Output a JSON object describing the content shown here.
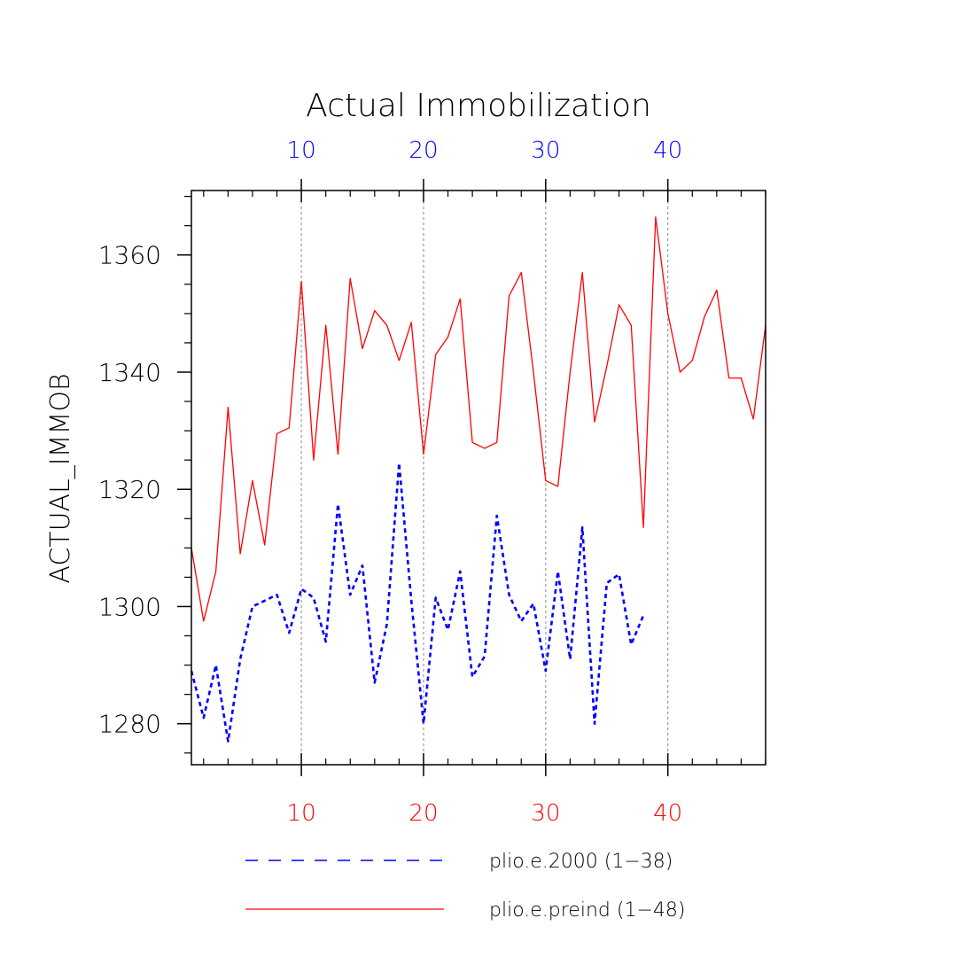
{
  "chart_data": {
    "type": "line",
    "title": "Actual Immobilization",
    "ylabel": "ACTUAL_IMMOB",
    "xlabel": "",
    "xlim": [
      1,
      48
    ],
    "ylim": [
      1273,
      1371
    ],
    "x_ticks": [
      10,
      20,
      30,
      40
    ],
    "y_ticks": [
      1280,
      1300,
      1320,
      1340,
      1360
    ],
    "grid": "vertical dashed at x ticks",
    "colors": {
      "preind": "#ff0000",
      "e2000": "#0000ff"
    },
    "series": [
      {
        "name": "plio.e.2000 (1−38)",
        "color": "#0000ff",
        "style": "dashed",
        "x_start": 1,
        "values": [
          1289,
          1281,
          1290,
          1277,
          1291,
          1300,
          1301,
          1302,
          1295.5,
          1303,
          1301.5,
          1294,
          1317.5,
          1302,
          1307,
          1287,
          1297,
          1324.5,
          1301,
          1280,
          1301.5,
          1296,
          1306,
          1288,
          1291.5,
          1315.5,
          1302,
          1297.5,
          1300.5,
          1289,
          1306,
          1291,
          1313.5,
          1280,
          1304,
          1305.5,
          1293.5,
          1298.5
        ]
      },
      {
        "name": "plio.e.preind (1−48)",
        "color": "#ff0000",
        "style": "solid",
        "x_start": 1,
        "values": [
          1310,
          1297.5,
          1306,
          1334,
          1309,
          1321.5,
          1310.5,
          1329.5,
          1330.5,
          1355.5,
          1325,
          1348,
          1326,
          1356,
          1344,
          1350.5,
          1348,
          1342,
          1348.5,
          1326,
          1343,
          1346,
          1352.5,
          1328,
          1327,
          1328,
          1353,
          1357,
          1340,
          1321.5,
          1320.5,
          1340,
          1357,
          1331.5,
          1341,
          1351.5,
          1348,
          1313.5,
          1366.5,
          1350,
          1340,
          1342,
          1349.5,
          1354,
          1339,
          1339,
          1332,
          1348
        ]
      }
    ],
    "legend": [
      {
        "label": "plio.e.2000 (1−38)",
        "color": "#0000ff",
        "style": "dashed"
      },
      {
        "label": "plio.e.preind (1−48)",
        "color": "#ff0000",
        "style": "solid"
      }
    ]
  }
}
